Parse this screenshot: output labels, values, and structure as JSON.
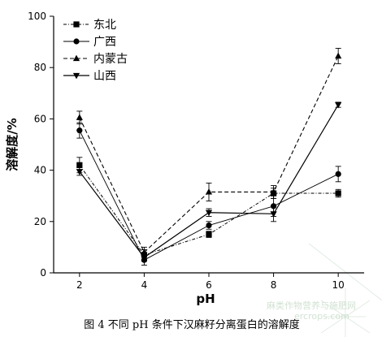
{
  "chart_data": {
    "type": "line",
    "x": [
      2,
      4,
      6,
      8,
      10
    ],
    "xlabel": "pH",
    "ylabel": "溶解度/%",
    "xlim": [
      1.2,
      10.8
    ],
    "ylim": [
      0,
      100
    ],
    "xticks": [
      2,
      4,
      6,
      8,
      10
    ],
    "yticks": [
      0,
      20,
      40,
      60,
      80,
      100
    ],
    "legend_position": "top-left",
    "grid": false,
    "series": [
      {
        "name": "东北",
        "marker": "square",
        "dash": "dashdot",
        "values": [
          42,
          7,
          15,
          31,
          31
        ],
        "errors": [
          3,
          2,
          1.2,
          2,
          1.5
        ]
      },
      {
        "name": "广西",
        "marker": "circle",
        "dash": "solid-thin",
        "values": [
          55.5,
          5,
          18.5,
          26,
          38.5
        ],
        "errors": [
          3,
          2,
          1.5,
          4,
          3
        ]
      },
      {
        "name": "内蒙古",
        "marker": "triangle-up",
        "dash": "dashed",
        "values": [
          60.5,
          8,
          31.5,
          31.5,
          84.5
        ],
        "errors": [
          2.5,
          2,
          3.5,
          2.5,
          3
        ]
      },
      {
        "name": "山西",
        "marker": "triangle-down",
        "dash": "solid",
        "values": [
          39.5,
          6,
          23.5,
          23,
          65.5
        ],
        "errors": [
          1.5,
          1.5,
          1.5,
          3,
          1
        ]
      }
    ]
  },
  "caption": "图 4  不同 pH 条件下汉麻籽分离蛋白的溶解度",
  "watermark": {
    "line1": "麻类作物营养与施肥网",
    "line2": "ercrops.com"
  }
}
